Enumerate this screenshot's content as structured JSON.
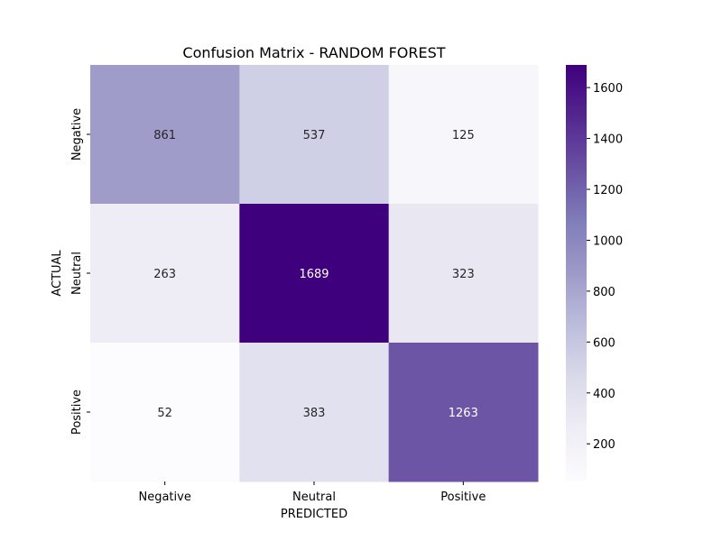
{
  "chart_data": {
    "type": "heatmap",
    "title": "Confusion Matrix - RANDOM FOREST",
    "xlabel": "PREDICTED",
    "ylabel": "ACTUAL",
    "x_categories": [
      "Negative",
      "Neutral",
      "Positive"
    ],
    "y_categories": [
      "Negative",
      "Neutral",
      "Positive"
    ],
    "values": [
      [
        861,
        537,
        125
      ],
      [
        263,
        1689,
        323
      ],
      [
        52,
        383,
        1263
      ]
    ],
    "colormap": "Purples",
    "colorbar": {
      "min": 52,
      "max": 1689,
      "ticks": [
        200,
        400,
        600,
        800,
        1000,
        1200,
        1400,
        1600
      ]
    }
  }
}
